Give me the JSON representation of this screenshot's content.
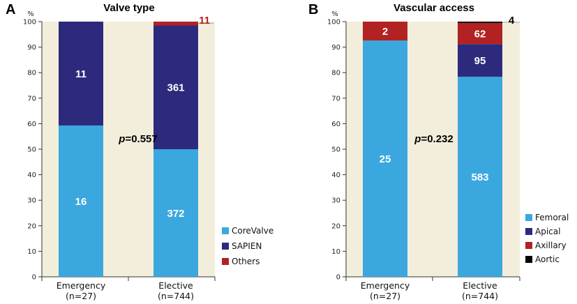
{
  "chart_data": [
    {
      "type": "bar",
      "stacked": true,
      "panel_label": "A",
      "title": "Valve type",
      "ylabel": "%",
      "ylim": [
        0,
        100
      ],
      "yticks": [
        0,
        10,
        20,
        30,
        40,
        50,
        60,
        70,
        80,
        90,
        100
      ],
      "categories": [
        {
          "name": "Emergency",
          "n": "(n=27)"
        },
        {
          "name": "Elective",
          "n": "(n=744)"
        }
      ],
      "series": [
        {
          "name": "CoreValve",
          "color": "#3aa8df",
          "values": [
            59.3,
            50.0
          ],
          "labels": [
            "16",
            "372"
          ]
        },
        {
          "name": "SAPIEN",
          "color": "#2d2a7e",
          "values": [
            40.7,
            48.5
          ],
          "labels": [
            "11",
            "361"
          ]
        },
        {
          "name": "Others",
          "color": "#b22222",
          "values": [
            0,
            1.5
          ],
          "labels": [
            "",
            "11"
          ]
        }
      ],
      "pvalue": {
        "prefix": "p",
        "text": "=0.557"
      },
      "legend_position": "bottom-right",
      "background": "#f3eedb"
    },
    {
      "type": "bar",
      "stacked": true,
      "panel_label": "B",
      "title": "Vascular access",
      "ylabel": "%",
      "ylim": [
        0,
        100
      ],
      "yticks": [
        0,
        10,
        20,
        30,
        40,
        50,
        60,
        70,
        80,
        90,
        100
      ],
      "categories": [
        {
          "name": "Emergency",
          "n": "(n=27)"
        },
        {
          "name": "Elective",
          "n": "(n=744)"
        }
      ],
      "series": [
        {
          "name": "Femoral",
          "color": "#3aa8df",
          "values": [
            92.6,
            78.4
          ],
          "labels": [
            "25",
            "583"
          ]
        },
        {
          "name": "Apical",
          "color": "#2d2a7e",
          "values": [
            0,
            12.8
          ],
          "labels": [
            "",
            "95"
          ]
        },
        {
          "name": "Axillary",
          "color": "#b22222",
          "values": [
            7.4,
            8.3
          ],
          "labels": [
            "2",
            "62"
          ]
        },
        {
          "name": "Aortic",
          "color": "#000000",
          "values": [
            0,
            0.5
          ],
          "labels": [
            "",
            "4"
          ]
        }
      ],
      "pvalue": {
        "prefix": "p",
        "text": "=0.232"
      },
      "legend_position": "bottom-right",
      "background": "#f3eedb"
    }
  ]
}
